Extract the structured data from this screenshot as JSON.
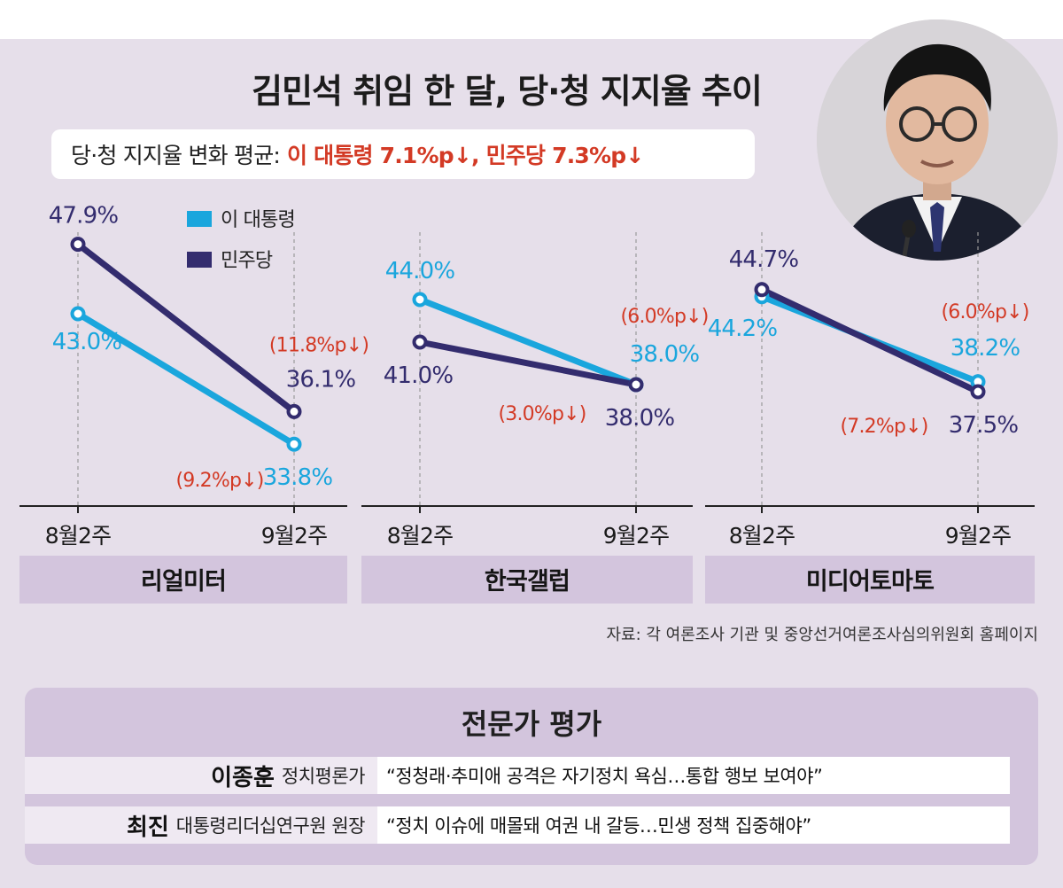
{
  "title": "김민석 취임 한 달, 당·청 지지율 추이",
  "subtitle": {
    "lead": "당·청 지지율 변화 평균:",
    "highlight": "이 대통령 7.1%p↓, 민주당 7.3%p↓"
  },
  "colors": {
    "president": "#1aa6dd",
    "party": "#332c6e",
    "drop": "#d33a25",
    "label_bar": "#d3c5dd"
  },
  "legend": [
    {
      "series": "president",
      "label": "이 대통령"
    },
    {
      "series": "party",
      "label": "민주당"
    }
  ],
  "chart_data": [
    {
      "type": "line",
      "name": "리얼미터",
      "x": [
        "8월2주",
        "9월2주"
      ],
      "series": [
        {
          "name": "이 대통령",
          "values": [
            43.0,
            33.8
          ],
          "labels": [
            "43.0%",
            "33.8%"
          ],
          "change": "(9.2%p↓)"
        },
        {
          "name": "민주당",
          "values": [
            47.9,
            36.1
          ],
          "labels": [
            "47.9%",
            "36.1%"
          ],
          "change": "(11.8%p↓)"
        }
      ]
    },
    {
      "type": "line",
      "name": "한국갤럽",
      "x": [
        "8월2주",
        "9월2주"
      ],
      "series": [
        {
          "name": "이 대통령",
          "values": [
            44.0,
            38.0
          ],
          "labels": [
            "44.0%",
            "38.0%"
          ],
          "change": "(6.0%p↓)"
        },
        {
          "name": "민주당",
          "values": [
            41.0,
            38.0
          ],
          "labels": [
            "41.0%",
            "38.0%"
          ],
          "change": "(3.0%p↓)"
        }
      ]
    },
    {
      "type": "line",
      "name": "미디어토마토",
      "x": [
        "8월2주",
        "9월2주"
      ],
      "series": [
        {
          "name": "이 대통령",
          "values": [
            44.2,
            38.2
          ],
          "labels": [
            "44.2%",
            "38.2%"
          ],
          "change": "(6.0%p↓)"
        },
        {
          "name": "민주당",
          "values": [
            44.7,
            37.5
          ],
          "labels": [
            "44.7%",
            "37.5%"
          ],
          "change": "(7.2%p↓)"
        }
      ]
    }
  ],
  "source": "자료: 각 여론조사 기관 및 중앙선거여론조사심의위원회 홈페이지",
  "expert": {
    "title": "전문가 평가",
    "rows": [
      {
        "name": "이종훈",
        "role": "정치평론가",
        "quote": "“정청래·추미애 공격은 자기정치 욕심…통합 행보 보여야”"
      },
      {
        "name": "최진",
        "role": "대통령리더십연구원 원장",
        "quote": "“정치 이슈에 매몰돼 여권 내 갈등…민생 정책 집중해야”"
      }
    ]
  }
}
